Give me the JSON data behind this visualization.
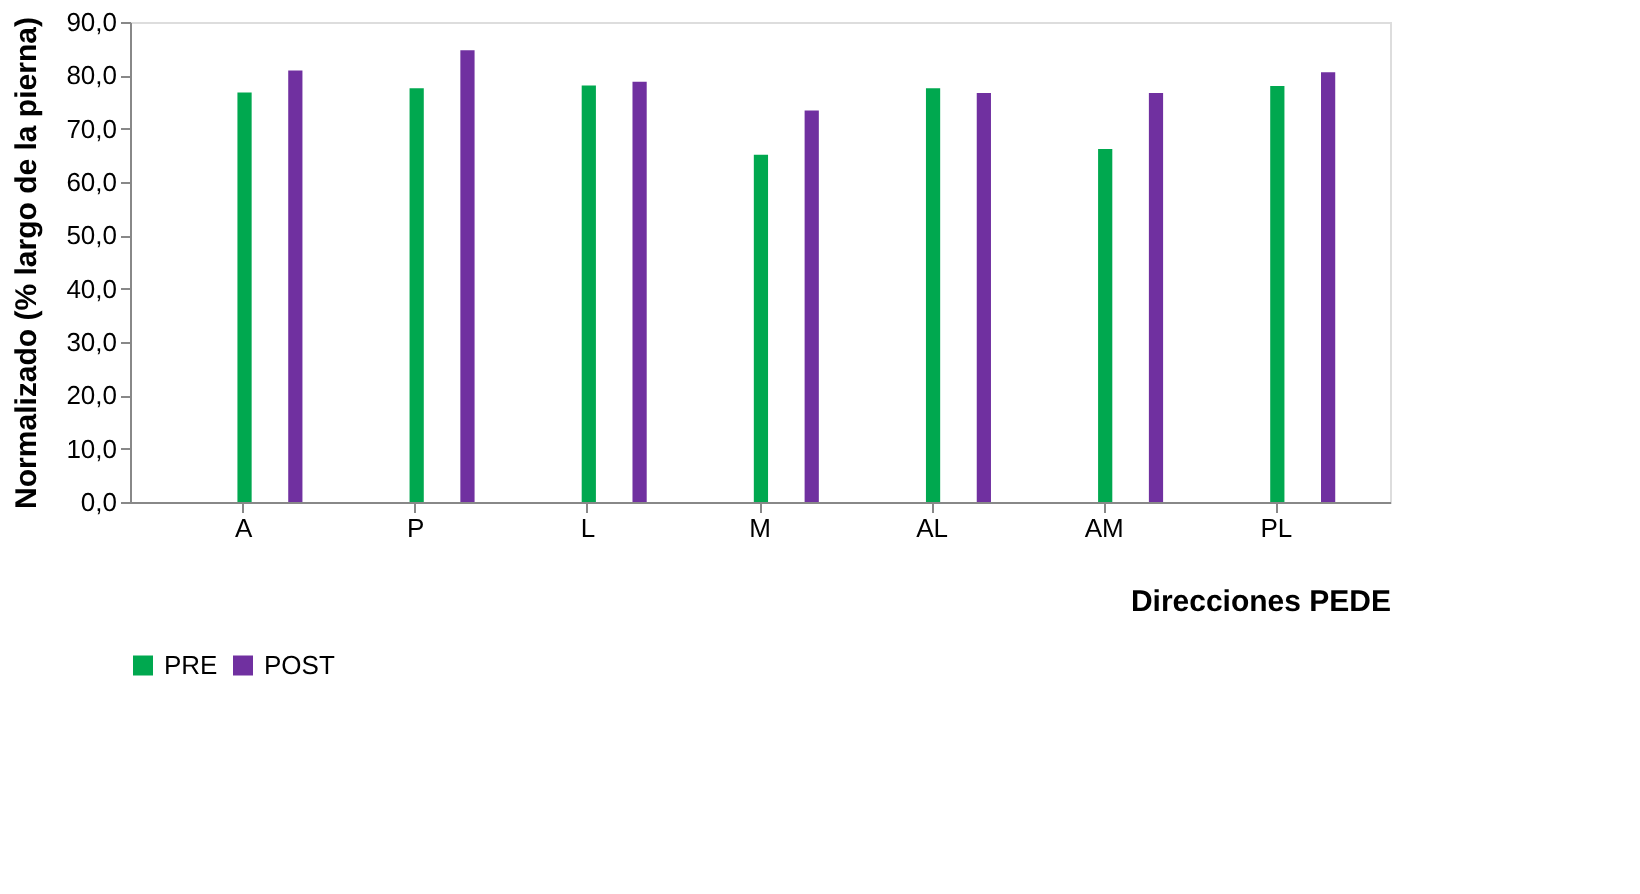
{
  "chart_data": {
    "type": "bar",
    "ylabel": "Normalizado (% largo de la pierna)",
    "xlabel": "Direcciones PEDE",
    "categories": [
      "A",
      "P",
      "L",
      "M",
      "AL",
      "AM",
      "PL"
    ],
    "series": [
      {
        "name": "PRE",
        "color": "#00a84f",
        "values": [
          76.8,
          77.6,
          78.1,
          65.1,
          77.6,
          66.2,
          78.0
        ]
      },
      {
        "name": "POST",
        "color": "#7030a0",
        "values": [
          80.9,
          84.7,
          78.8,
          73.4,
          76.7,
          76.7,
          80.6
        ]
      }
    ],
    "ylim": [
      0,
      90
    ],
    "yticks": [
      {
        "value": 0,
        "label": "0,0"
      },
      {
        "value": 10,
        "label": "10,0"
      },
      {
        "value": 20,
        "label": "20,0"
      },
      {
        "value": 30,
        "label": "30,0"
      },
      {
        "value": 40,
        "label": "40,0"
      },
      {
        "value": 50,
        "label": "50,0"
      },
      {
        "value": 60,
        "label": "60,0"
      },
      {
        "value": 70,
        "label": "70,0"
      },
      {
        "value": 80,
        "label": "80,0"
      },
      {
        "value": 90,
        "label": "90,0"
      }
    ],
    "grid": false,
    "legend": "bottom"
  }
}
